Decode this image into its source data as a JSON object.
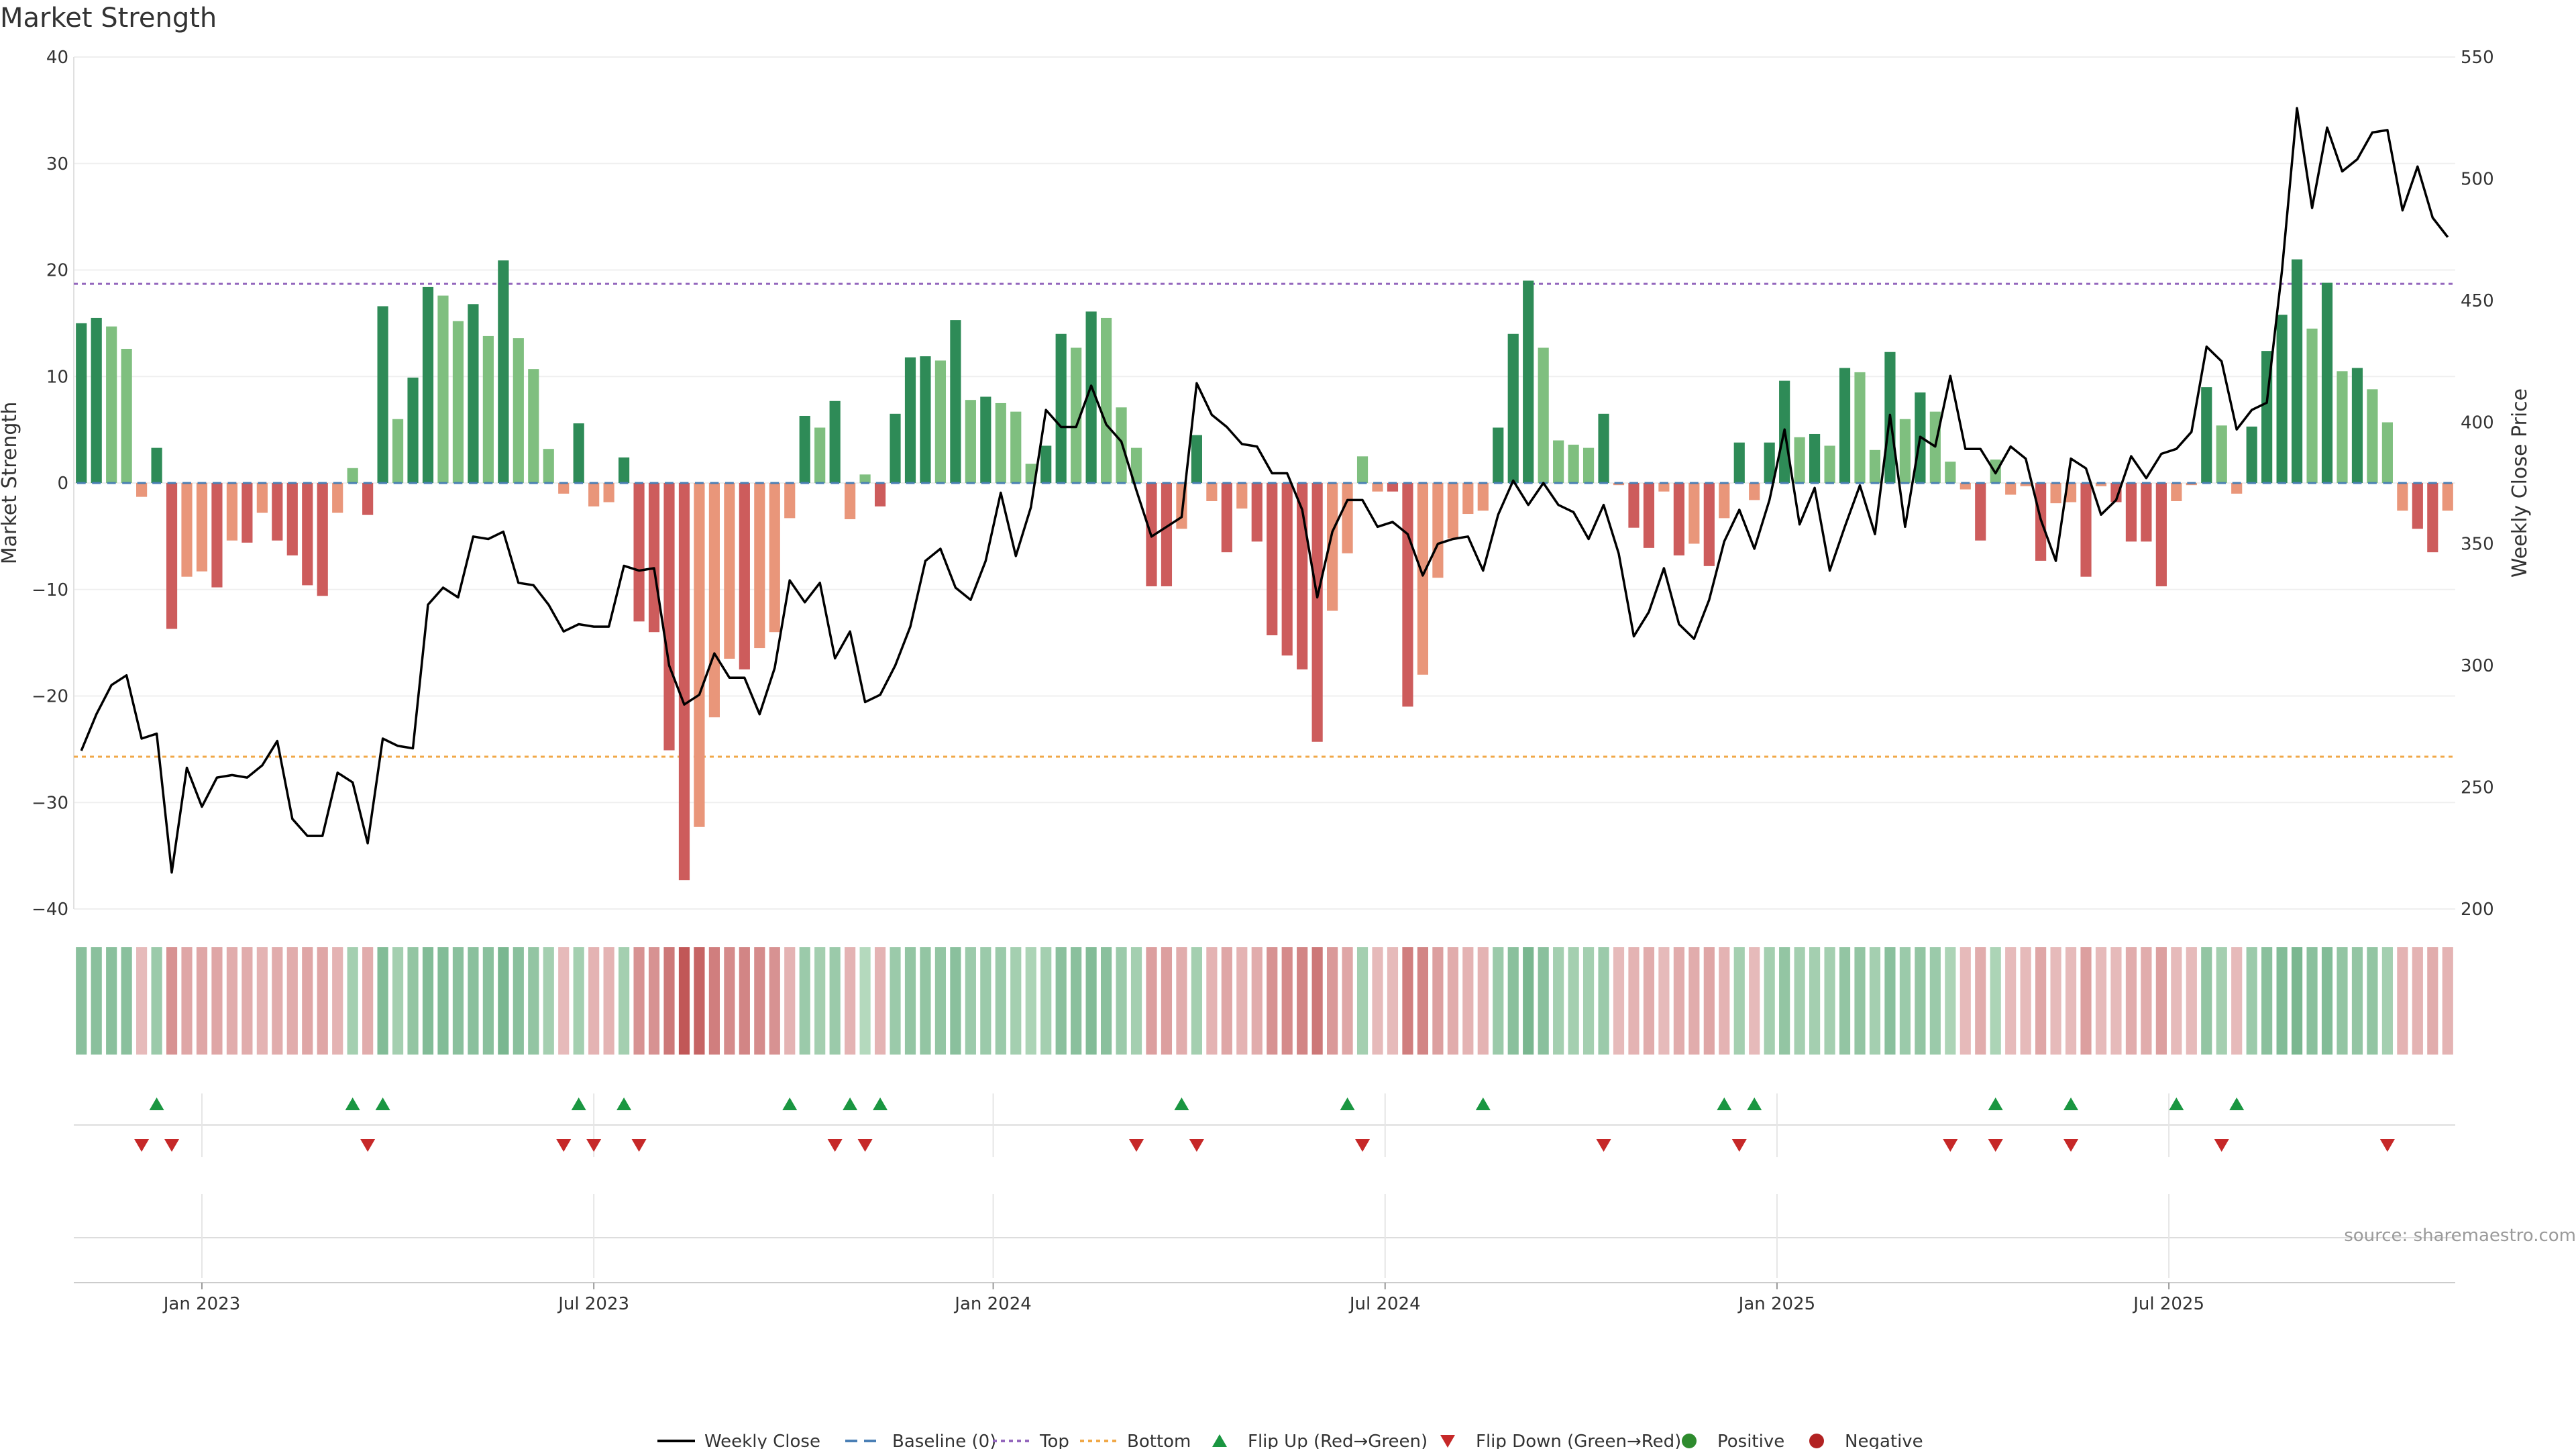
{
  "chart_data": {
    "type": "bar",
    "title": "Market Strength",
    "ylabel": "Market Strength",
    "y2label": "Weekly Close Price",
    "ylim": [
      -40,
      40
    ],
    "y_ticks": [
      40,
      30,
      20,
      10,
      0,
      -10,
      -20,
      -30,
      -40
    ],
    "y2lim": [
      200,
      550
    ],
    "y2_ticks": [
      550,
      500,
      450,
      400,
      350,
      300,
      250,
      200
    ],
    "x_ticks": [
      {
        "label": "Jan 2023",
        "index": 8
      },
      {
        "label": "Jul 2023",
        "index": 34
      },
      {
        "label": "Jan 2024",
        "index": 60.5
      },
      {
        "label": "Jul 2024",
        "index": 86.5
      },
      {
        "label": "Jan 2025",
        "index": 112.5
      },
      {
        "label": "Jul 2025",
        "index": 138.5
      }
    ],
    "top_threshold": 18.7,
    "bottom_threshold": -25.7,
    "strength": [
      15,
      15.5,
      14.7,
      12.6,
      -1.3,
      3.3,
      -13.7,
      -8.8,
      -8.3,
      -9.8,
      -5.4,
      -5.6,
      -2.8,
      -5.4,
      -6.8,
      -9.6,
      -10.6,
      -2.8,
      1.4,
      -3,
      16.6,
      6,
      9.9,
      18.4,
      17.6,
      15.2,
      16.8,
      13.8,
      20.9,
      13.6,
      10.7,
      3.2,
      -1,
      5.6,
      -2.2,
      -1.8,
      2.4,
      -13,
      -14,
      -25.1,
      -37.3,
      -32.3,
      -22,
      -16.5,
      -17.5,
      -15.5,
      -14,
      -3.3,
      6.3,
      5.2,
      7.7,
      -3.4,
      0.8,
      -2.2,
      6.5,
      11.8,
      11.9,
      11.5,
      15.3,
      7.8,
      8.1,
      7.5,
      6.7,
      1.8,
      3.5,
      14,
      12.7,
      16.1,
      15.5,
      7.1,
      3.3,
      -9.7,
      -9.7,
      -4.3,
      4.5,
      -1.7,
      -6.5,
      -2.4,
      -5.5,
      -14.3,
      -16.2,
      -17.5,
      -24.3,
      -12,
      -6.6,
      2.5,
      -0.8,
      -0.8,
      -21,
      -18,
      -8.9,
      -5.2,
      -2.9,
      -2.6,
      5.2,
      14,
      19,
      12.7,
      4,
      3.6,
      3.3,
      6.5,
      -0.2,
      -4.2,
      -6.1,
      -0.8,
      -6.8,
      -5.7,
      -7.8,
      -3.3,
      3.8,
      -1.6,
      3.8,
      9.6,
      4.3,
      4.6,
      3.5,
      10.8,
      10.4,
      3.1,
      12.3,
      6,
      8.5,
      6.7,
      2,
      -0.6,
      -5.4,
      2.2,
      -1.1,
      -0.3,
      -7.3,
      -1.9,
      -1.8,
      -8.8,
      -0.3,
      -1.8,
      -5.5,
      -5.5,
      -9.7,
      -1.7,
      -0.2,
      9,
      5.4,
      -1,
      5.3,
      12.4,
      15.8,
      21,
      14.5,
      18.8,
      10.5,
      10.8,
      8.8,
      5.7,
      -2.6,
      -4.3,
      -6.5,
      -2.6
    ],
    "weekly_close": [
      265,
      280,
      292,
      296,
      270,
      272,
      215,
      258,
      242,
      254,
      255,
      254,
      259,
      269,
      237,
      230,
      230,
      256,
      252,
      227,
      270,
      267,
      266,
      325,
      332,
      328,
      353,
      352,
      355,
      334,
      333,
      325,
      314,
      317,
      316,
      316,
      341,
      339,
      340,
      300,
      284,
      288,
      305,
      295,
      295,
      280,
      299,
      335,
      326,
      334,
      303,
      314,
      285,
      288,
      300,
      316,
      343,
      348,
      332,
      327,
      343,
      371,
      345,
      365,
      405,
      398,
      398,
      415,
      399,
      392,
      372,
      353,
      357,
      361,
      416,
      403,
      398,
      391,
      390,
      379,
      379,
      364,
      328,
      355,
      368,
      368,
      357,
      359,
      354,
      337,
      350,
      352,
      353,
      339,
      362,
      376,
      366,
      375,
      366,
      363,
      352,
      366,
      346,
      312,
      322,
      340,
      317,
      311,
      327,
      351,
      364,
      348,
      368,
      397,
      358,
      373,
      339,
      357,
      374,
      354,
      403,
      357,
      394,
      390,
      419,
      389,
      389,
      379,
      390,
      385,
      360,
      343,
      385,
      381,
      362,
      368,
      386,
      377,
      387,
      389,
      396,
      431,
      425,
      397,
      405,
      408,
      462,
      529,
      488,
      521,
      503,
      508,
      519,
      520,
      487,
      505,
      484,
      476
    ],
    "strip": [
      0.45,
      0.45,
      0.45,
      0.45,
      -0.2,
      0.35,
      -0.5,
      -0.35,
      -0.35,
      -0.35,
      -0.3,
      -0.3,
      -0.25,
      -0.3,
      -0.3,
      -0.35,
      -0.35,
      -0.25,
      0.3,
      -0.3,
      0.5,
      0.3,
      0.4,
      0.5,
      0.5,
      0.45,
      0.45,
      0.45,
      0.55,
      0.45,
      0.4,
      0.3,
      -0.2,
      0.3,
      -0.25,
      -0.25,
      0.3,
      -0.5,
      -0.5,
      -0.7,
      -0.95,
      -0.85,
      -0.65,
      -0.55,
      -0.6,
      -0.55,
      -0.5,
      -0.25,
      0.35,
      0.3,
      0.35,
      -0.25,
      0.2,
      -0.25,
      0.35,
      0.4,
      0.4,
      0.4,
      0.45,
      0.35,
      0.35,
      0.35,
      0.3,
      0.25,
      0.3,
      0.45,
      0.45,
      0.5,
      0.45,
      0.35,
      0.3,
      -0.4,
      -0.4,
      -0.3,
      0.3,
      -0.25,
      -0.35,
      -0.25,
      -0.3,
      -0.5,
      -0.55,
      -0.6,
      -0.7,
      -0.45,
      -0.35,
      0.3,
      -0.2,
      -0.2,
      -0.65,
      -0.6,
      -0.4,
      -0.3,
      -0.25,
      -0.25,
      0.35,
      0.45,
      0.55,
      0.45,
      0.3,
      0.3,
      0.3,
      0.35,
      -0.2,
      -0.25,
      -0.3,
      -0.2,
      -0.3,
      -0.3,
      -0.35,
      -0.25,
      0.3,
      -0.2,
      0.3,
      0.4,
      0.3,
      0.3,
      0.3,
      0.4,
      0.4,
      0.3,
      0.45,
      0.35,
      0.4,
      0.35,
      0.25,
      -0.2,
      -0.3,
      0.25,
      -0.2,
      -0.2,
      -0.35,
      -0.2,
      -0.2,
      -0.4,
      -0.2,
      -0.2,
      -0.3,
      -0.3,
      -0.4,
      -0.2,
      -0.2,
      0.4,
      0.3,
      -0.2,
      0.35,
      0.45,
      0.5,
      0.55,
      0.45,
      0.5,
      0.4,
      0.4,
      0.4,
      0.3,
      -0.25,
      -0.25,
      -0.3,
      -0.25
    ],
    "flip_up_indices": [
      5,
      18,
      20,
      33,
      36,
      47,
      51,
      53,
      73,
      84,
      93,
      109,
      111,
      127,
      132,
      139,
      143
    ],
    "flip_down_indices": [
      4,
      6,
      19,
      32,
      34,
      37,
      50,
      52,
      70,
      74,
      85,
      101,
      110,
      124,
      127,
      132,
      142,
      153
    ],
    "legend": [
      "Weekly Close",
      "Baseline (0)",
      "Top",
      "Bottom",
      "Flip Up (Red→Green)",
      "Flip Down (Green→Red)",
      "Positive",
      "Negative"
    ],
    "source": "source: sharemaestro.com"
  },
  "colors": {
    "pos_strong": "#2e8b57",
    "pos_weak": "#7fbf7f",
    "neg_strong": "#cd5c5c",
    "neg_weak": "#e9967a",
    "top_line": "#9467bd",
    "bottom_line": "#f0a848",
    "baseline": "#4a7fb5",
    "flip_up": "#1a9641",
    "flip_down": "#c62828",
    "positive_dot": "#2e8b2e",
    "negative_dot": "#b22222",
    "price_line": "#000000"
  }
}
